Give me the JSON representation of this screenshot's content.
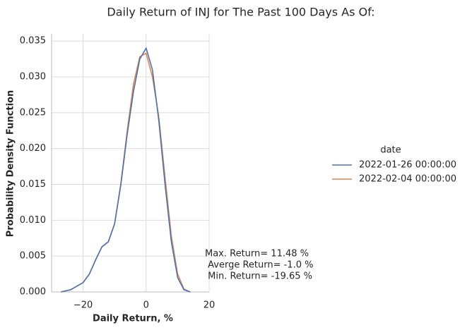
{
  "chart_data": {
    "type": "line",
    "title": "Daily Return of INJ for The Past 100 Days As Of:",
    "x_label": "Daily Return, %",
    "y_label": "Probability Density Function",
    "x": [
      -27,
      -24,
      -20,
      -18,
      -16,
      -14,
      -12,
      -10,
      -8,
      -6,
      -4,
      -2,
      0,
      2,
      4,
      6,
      8,
      10,
      12,
      14
    ],
    "series": [
      {
        "name": "2022-01-26 00:00:00",
        "color": "#4c72b0",
        "values": [
          0,
          0.0003,
          0.0013,
          0.0025,
          0.0045,
          0.0063,
          0.007,
          0.0095,
          0.015,
          0.022,
          0.028,
          0.0325,
          0.034,
          0.031,
          0.024,
          0.015,
          0.007,
          0.002,
          0.0003,
          0
        ]
      },
      {
        "name": "2022-02-04 00:00:00",
        "color": "#dd8452",
        "values": [
          0,
          0.0003,
          0.0013,
          0.0025,
          0.0045,
          0.0063,
          0.007,
          0.0095,
          0.0152,
          0.0225,
          0.029,
          0.0328,
          0.0333,
          0.03,
          0.0245,
          0.016,
          0.0078,
          0.0025,
          0.0004,
          0
        ]
      }
    ],
    "legend_title": "date",
    "legend_position": "right",
    "annotation": [
      "Max. Return= 11.48 %",
      " Averge Return= -1.0 %",
      " Min. Return= -19.65 %"
    ],
    "xlim": [
      -30,
      20
    ],
    "ylim": [
      0,
      0.036
    ],
    "xticks": [
      {
        "value": -20,
        "label": "−20"
      },
      0,
      20
    ],
    "yticks": [
      {
        "value": 0,
        "label": "0.000"
      },
      {
        "value": 0.005,
        "label": "0.005"
      },
      {
        "value": 0.01,
        "label": "0.010"
      },
      {
        "value": 0.015,
        "label": "0.015"
      },
      {
        "value": 0.02,
        "label": "0.020"
      },
      {
        "value": 0.025,
        "label": "0.025"
      },
      {
        "value": 0.03,
        "label": "0.030"
      },
      {
        "value": 0.035,
        "label": "0.035"
      }
    ],
    "grid": true
  }
}
